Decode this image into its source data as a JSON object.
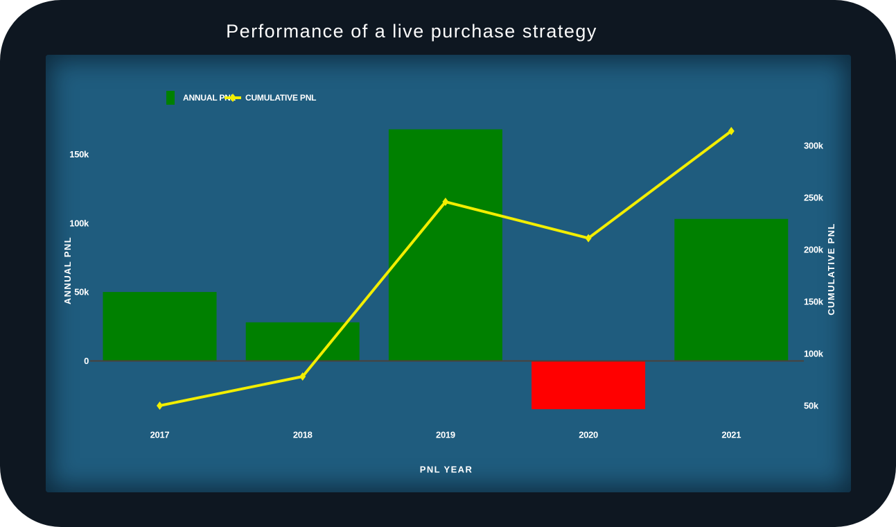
{
  "title": "Performance of a live purchase strategy",
  "colors": {
    "card_background": "#0e1721",
    "panel_background": "#1f5c7e",
    "bar_positive": "#008000",
    "bar_negative": "#ff0000",
    "line": "#f2ee00",
    "zero_line": "#4a413c",
    "label_text": "#ffffff",
    "title_text": "#fbfbfb"
  },
  "legend": {
    "items": [
      {
        "label": "ANNUAL PNL",
        "swatch": "green-bar"
      },
      {
        "label": "CUMULATIVE PNL",
        "swatch": "yellow-line-diamond"
      }
    ],
    "position": "top-left-inside-plot"
  },
  "chart_data": {
    "type": "combo-bar-line",
    "title": "Performance of a live purchase strategy",
    "categories": [
      "2017",
      "2018",
      "2019",
      "2020",
      "2021"
    ],
    "series": [
      {
        "name": "ANNUAL PNL",
        "type": "bar",
        "axis": "left",
        "values": [
          50000,
          28000,
          168000,
          -35000,
          103000
        ],
        "positive_color": "#008000",
        "negative_color": "#ff0000"
      },
      {
        "name": "CUMULATIVE PNL",
        "type": "line",
        "axis": "right",
        "values": [
          50000,
          78000,
          246000,
          211000,
          314000
        ],
        "color": "#f2ee00",
        "marker": "diamond"
      }
    ],
    "xlabel": "PNL YEAR",
    "ylabel_left": "ANNUAL PNL",
    "ylabel_right": "CUMULATIVE PNL",
    "left_ticks": [
      {
        "value": 0,
        "label": "0"
      },
      {
        "value": 50000,
        "label": "50k"
      },
      {
        "value": 100000,
        "label": "100k"
      },
      {
        "value": 150000,
        "label": "150k"
      }
    ],
    "right_ticks": [
      {
        "value": 50000,
        "label": "50k"
      },
      {
        "value": 100000,
        "label": "100k"
      },
      {
        "value": 150000,
        "label": "150k"
      },
      {
        "value": 200000,
        "label": "200k"
      },
      {
        "value": 250000,
        "label": "250k"
      },
      {
        "value": 300000,
        "label": "300k"
      }
    ],
    "left_axis_visible_range": [
      -50000,
      175000
    ],
    "right_axis_visible_range": [
      25000,
      325000
    ],
    "grid": false,
    "zero_baseline_shown": true,
    "legend_position": "top-left"
  }
}
